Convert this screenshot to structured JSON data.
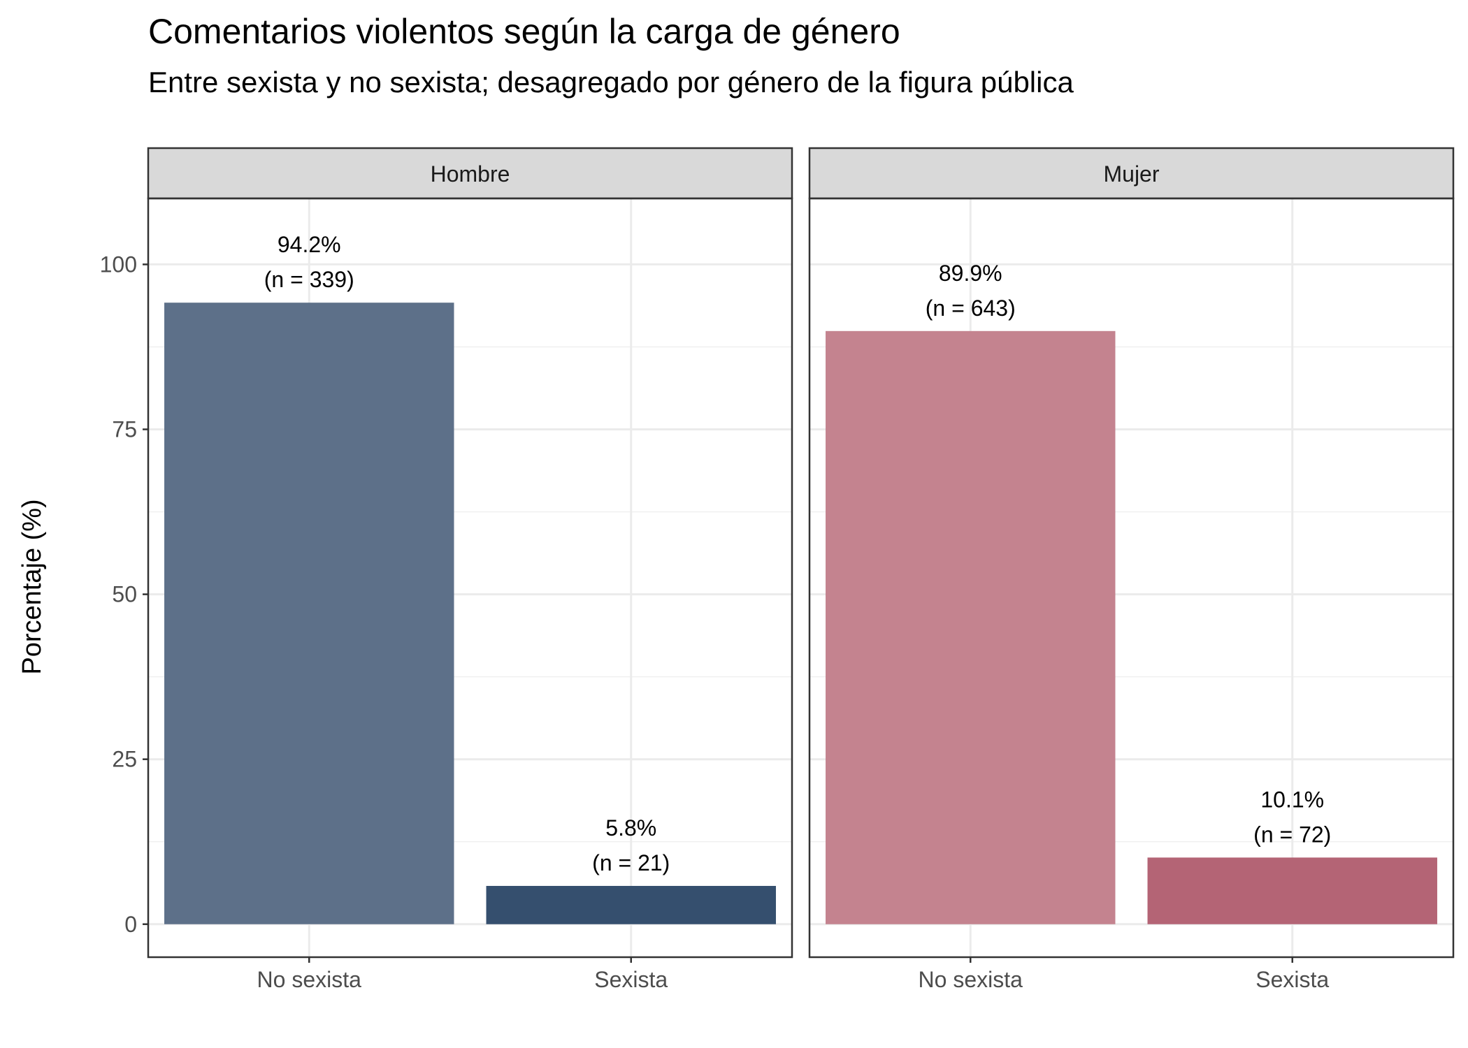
{
  "chart_data": {
    "type": "bar",
    "title": "Comentarios violentos según la carga de género",
    "subtitle": "Entre sexista y no sexista; desagregado por género de la figura pública",
    "xlabel": "",
    "ylabel": "Porcentaje (%)",
    "ylim": [
      -5,
      110
    ],
    "yticks": [
      0,
      25,
      50,
      75,
      100
    ],
    "grid": true,
    "legend": "none",
    "categories": [
      "No sexista",
      "Sexista"
    ],
    "panels": [
      {
        "name": "Hombre",
        "values": [
          94.2,
          5.8
        ],
        "labels": [
          "94.2%",
          "5.8%"
        ],
        "counts": [
          "(n = 339)",
          "(n = 21)"
        ],
        "colors": [
          "#5d7089",
          "#354f6e"
        ]
      },
      {
        "name": "Mujer",
        "values": [
          89.9,
          10.1
        ],
        "labels": [
          "89.9%",
          "10.1%"
        ],
        "counts": [
          "(n = 643)",
          "(n = 72)"
        ],
        "colors": [
          "#c4838f",
          "#b46475"
        ]
      }
    ]
  }
}
